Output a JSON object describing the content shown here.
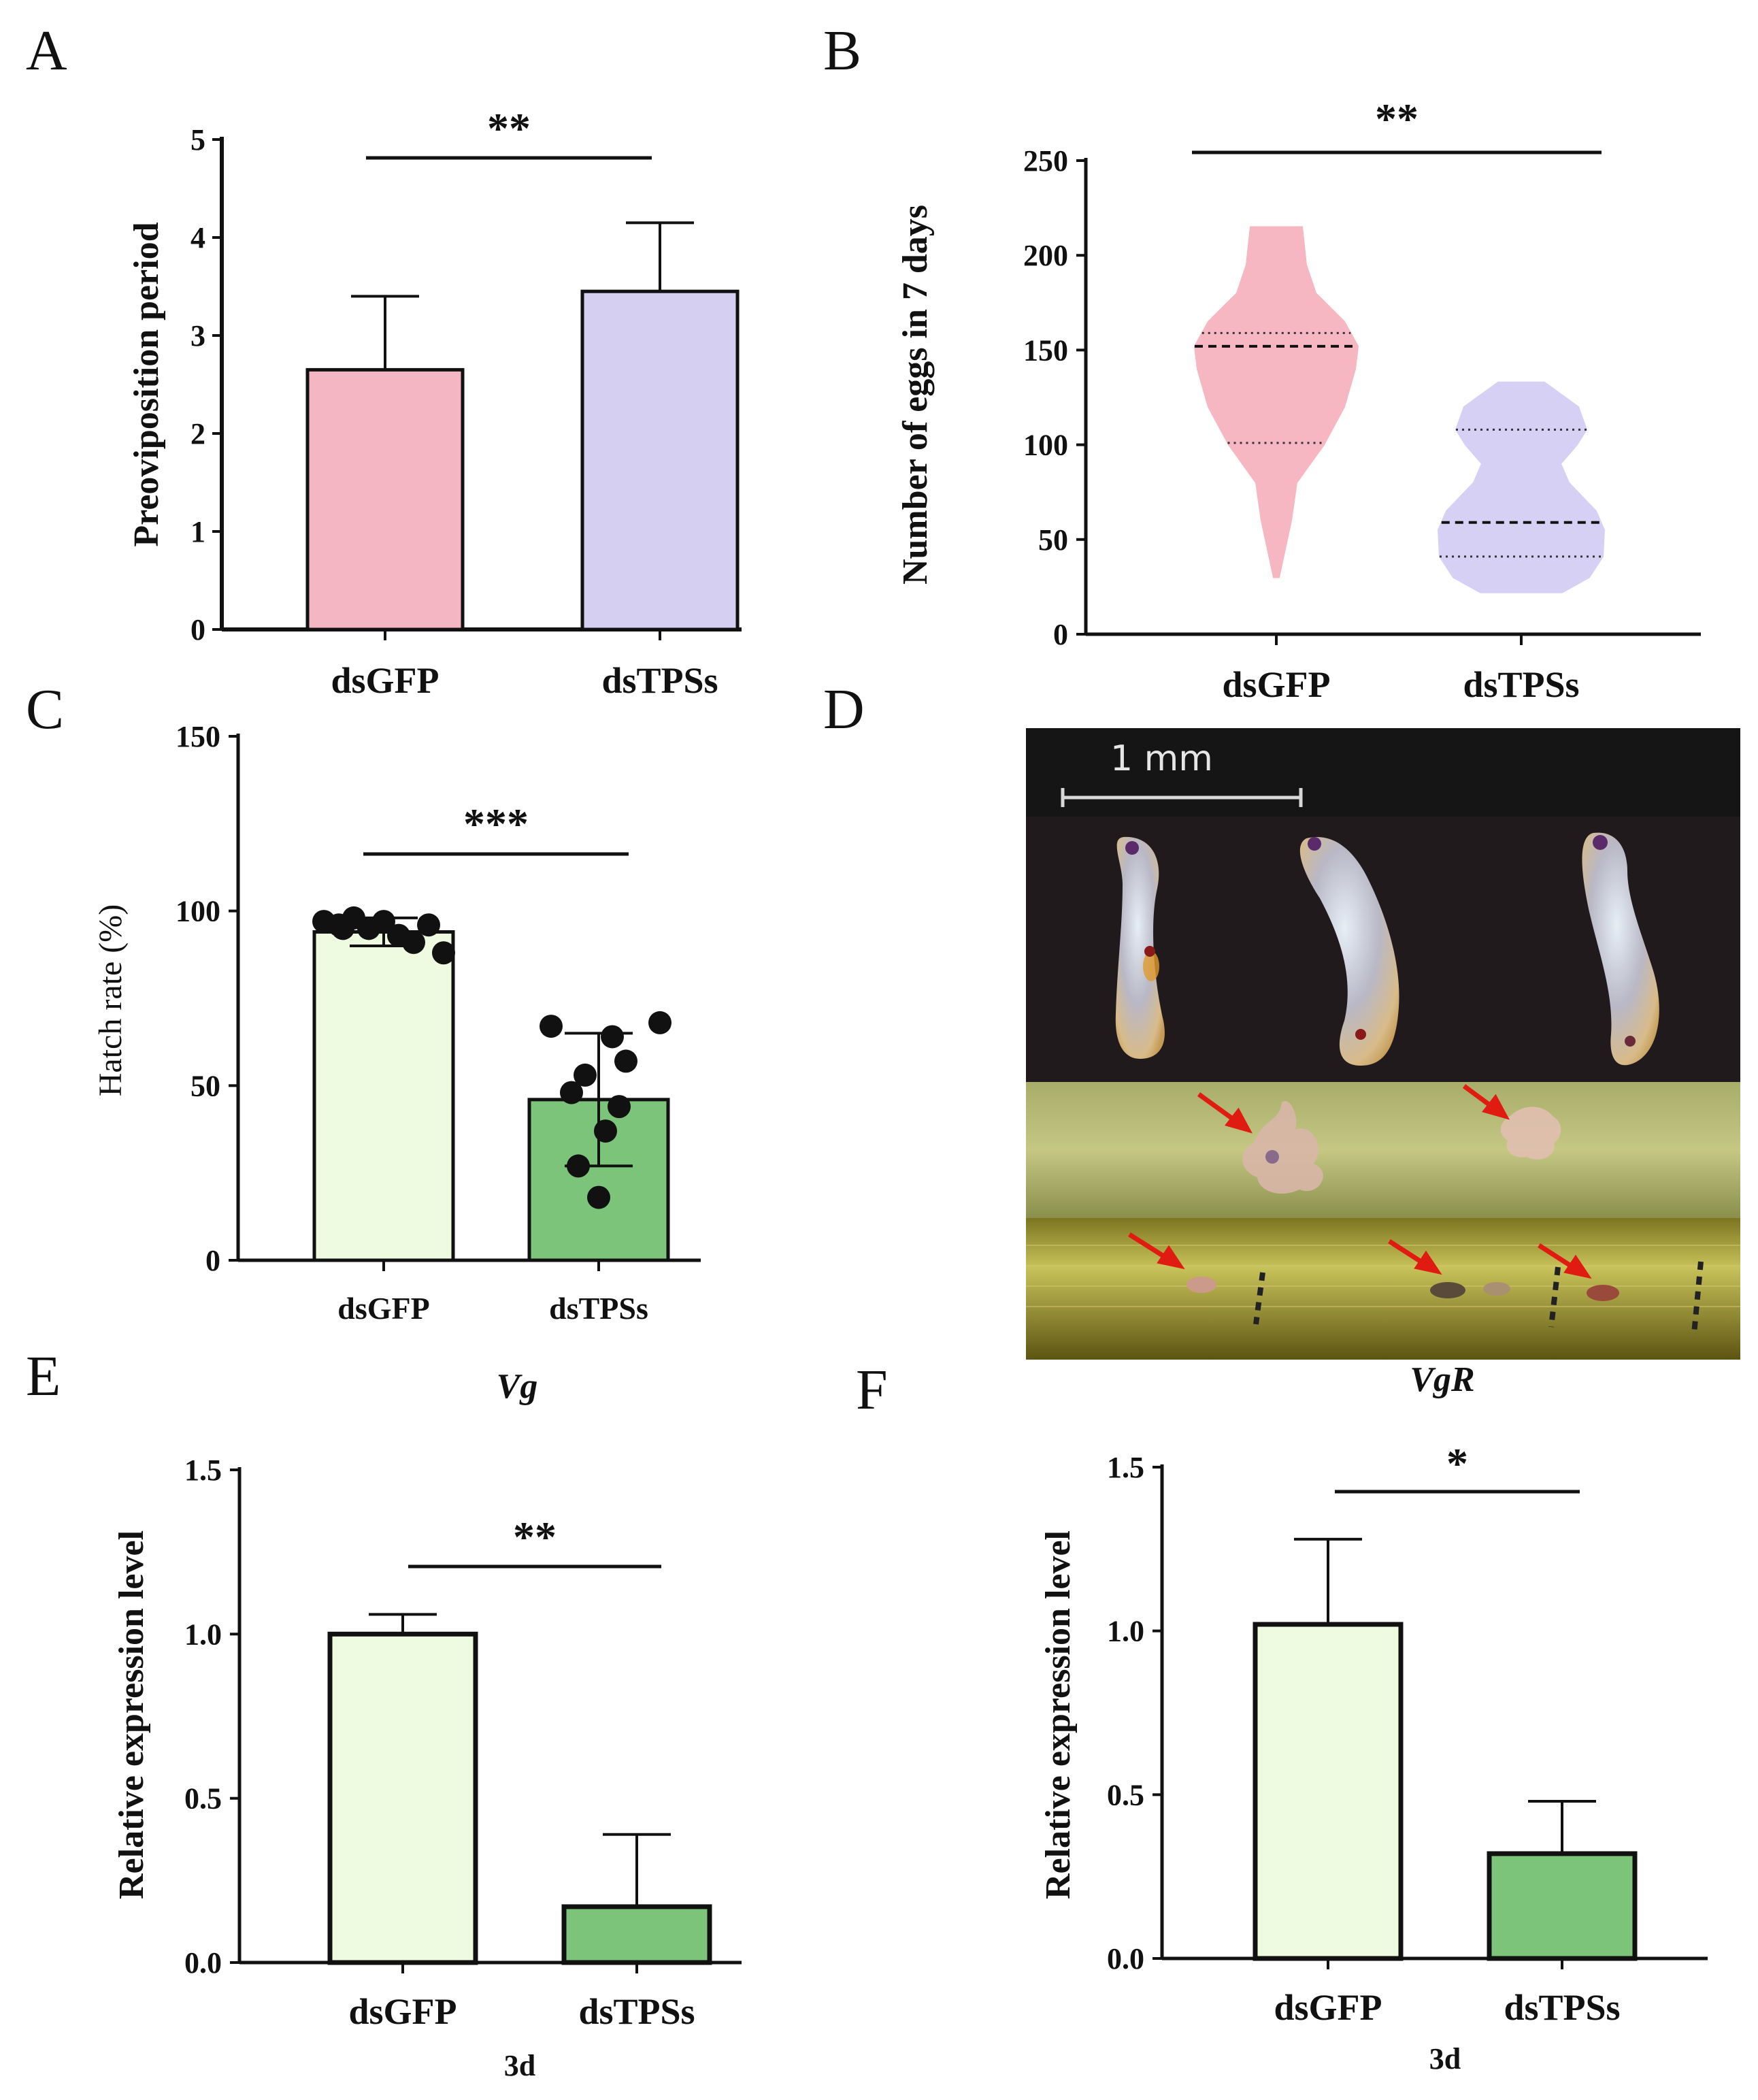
{
  "panels": {
    "A": "A",
    "B": "B",
    "C": "C",
    "D": "D",
    "E": "E",
    "F": "F"
  },
  "chart_data": [
    {
      "id": "A",
      "type": "bar",
      "categories": [
        "dsGFP",
        "dsTPSs"
      ],
      "values": [
        2.65,
        3.45
      ],
      "errors": [
        0.75,
        0.7
      ],
      "ylabel": "Preoviposition period",
      "ylim": [
        0,
        5
      ],
      "yticks": [
        "0",
        "1",
        "2",
        "3",
        "4",
        "5"
      ],
      "significance": "**",
      "colors": [
        "#f4b6c2",
        "#d5d0f2"
      ]
    },
    {
      "id": "B",
      "type": "violin",
      "categories": [
        "dsGFP",
        "dsTPSs"
      ],
      "ylabel": "Number of eggs in 7 days",
      "ylim": [
        0,
        250
      ],
      "yticks": [
        "0",
        "50",
        "100",
        "150",
        "200",
        "250"
      ],
      "significance": "**",
      "medians": [
        152,
        59
      ],
      "quartiles": [
        [
          101,
          159
        ],
        [
          41,
          108
        ]
      ],
      "ranges": [
        [
          30,
          215
        ],
        [
          22,
          133
        ]
      ],
      "colors": [
        "#f7b7c2",
        "#d6d0f4"
      ]
    },
    {
      "id": "C",
      "type": "bar",
      "categories": [
        "dsGFP",
        "dsTPSs"
      ],
      "values": [
        94,
        46
      ],
      "errors": [
        4,
        19
      ],
      "points": [
        [
          97,
          96,
          98,
          95,
          97,
          93,
          91,
          96,
          88,
          95
        ],
        [
          67,
          64,
          68,
          53,
          57,
          48,
          44,
          37,
          27,
          18
        ]
      ],
      "ylabel": "Hatch rate (%)",
      "ylim": [
        0,
        150
      ],
      "yticks": [
        "0",
        "50",
        "100",
        "150"
      ],
      "significance": "***",
      "colors": [
        "#eefbe0",
        "#7cc479"
      ]
    },
    {
      "id": "E",
      "type": "bar",
      "title": "Vg",
      "categories": [
        "dsGFP",
        "dsTPSs"
      ],
      "values": [
        1.0,
        0.17
      ],
      "errors": [
        0.06,
        0.22
      ],
      "ylabel": "Relative expression level",
      "xlabel": "3d",
      "ylim": [
        0,
        1.5
      ],
      "yticks": [
        "0.0",
        "0.5",
        "1.0",
        "1.5"
      ],
      "significance": "**",
      "colors": [
        "#eefbe0",
        "#7cc479"
      ]
    },
    {
      "id": "F",
      "type": "bar",
      "title": "VgR",
      "categories": [
        "dsGFP",
        "dsTPSs"
      ],
      "values": [
        1.02,
        0.32
      ],
      "errors": [
        0.26,
        0.16
      ],
      "ylabel": "Relative expression level",
      "xlabel": "3d",
      "ylim": [
        0,
        1.5
      ],
      "yticks": [
        "0.0",
        "0.5",
        "1.0",
        "1.5"
      ],
      "significance": "*",
      "colors": [
        "#eefbe0",
        "#7cc479"
      ]
    }
  ],
  "photo": {
    "scale_label": "1 mm"
  }
}
